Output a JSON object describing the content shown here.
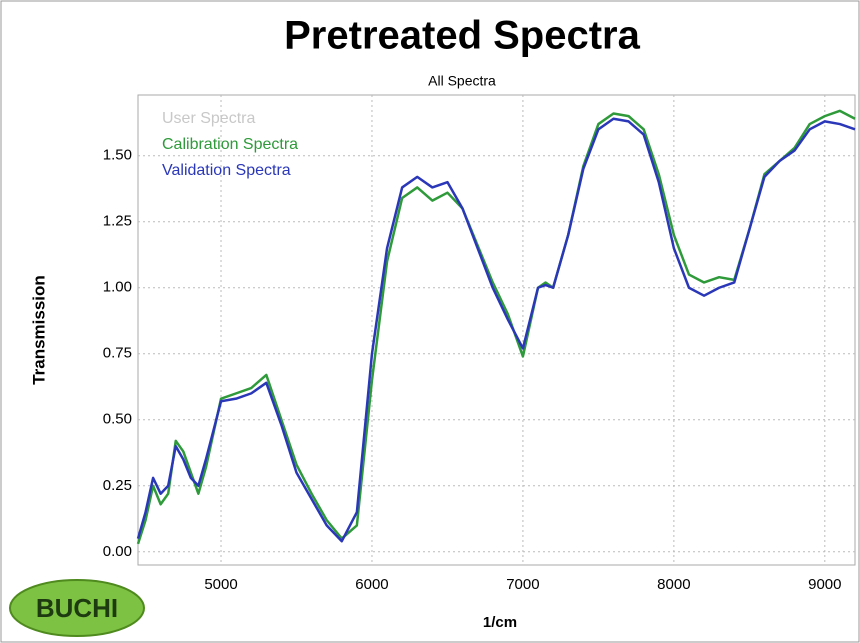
{
  "chart_data": {
    "type": "line",
    "title": "Pretreated Spectra",
    "subtitle": "All Spectra",
    "x_label": "1/cm",
    "y_label": "Transmission",
    "logo": "BUCHI",
    "x": [
      4450,
      4500,
      4550,
      4600,
      4650,
      4700,
      4750,
      4800,
      4850,
      4900,
      5000,
      5100,
      5200,
      5300,
      5400,
      5500,
      5600,
      5700,
      5800,
      5900,
      6000,
      6100,
      6200,
      6300,
      6400,
      6500,
      6600,
      6700,
      6800,
      6900,
      7000,
      7100,
      7150,
      7200,
      7300,
      7400,
      7500,
      7600,
      7700,
      7800,
      7900,
      8000,
      8100,
      8200,
      8300,
      8400,
      8500,
      8600,
      8700,
      8800,
      8900,
      9000,
      9100,
      9200
    ],
    "series": [
      {
        "name": "User Spectra",
        "color": "#c8c8c8",
        "values": [
          null,
          null,
          null,
          null,
          null,
          null,
          null,
          null,
          null,
          null,
          null,
          null,
          null,
          null,
          null,
          null,
          null,
          null,
          null,
          null,
          null,
          null,
          null,
          null,
          null,
          null,
          null,
          null,
          null,
          null,
          null,
          null,
          null,
          null,
          null,
          null,
          null,
          null,
          null,
          null,
          null,
          null,
          null,
          null,
          null,
          null,
          null,
          null,
          null,
          null,
          null,
          null,
          null,
          null
        ]
      },
      {
        "name": "Calibration Spectra",
        "color": "#2e9a3a",
        "values": [
          0.03,
          0.12,
          0.25,
          0.18,
          0.22,
          0.42,
          0.38,
          0.3,
          0.22,
          0.32,
          0.58,
          0.6,
          0.62,
          0.67,
          0.5,
          0.33,
          0.22,
          0.12,
          0.05,
          0.1,
          0.65,
          1.1,
          1.34,
          1.38,
          1.33,
          1.36,
          1.3,
          1.16,
          1.02,
          0.9,
          0.74,
          1.0,
          1.02,
          1.0,
          1.2,
          1.46,
          1.62,
          1.66,
          1.65,
          1.6,
          1.43,
          1.2,
          1.05,
          1.02,
          1.04,
          1.03,
          1.22,
          1.43,
          1.48,
          1.53,
          1.62,
          1.65,
          1.67,
          1.64
        ]
      },
      {
        "name": "Validation Spectra",
        "color": "#2a37b8",
        "values": [
          0.05,
          0.15,
          0.28,
          0.22,
          0.25,
          0.4,
          0.35,
          0.28,
          0.25,
          0.35,
          0.57,
          0.58,
          0.6,
          0.64,
          0.48,
          0.3,
          0.2,
          0.1,
          0.04,
          0.15,
          0.75,
          1.15,
          1.38,
          1.42,
          1.38,
          1.4,
          1.3,
          1.15,
          1.0,
          0.88,
          0.77,
          1.0,
          1.01,
          1.0,
          1.2,
          1.45,
          1.6,
          1.64,
          1.63,
          1.58,
          1.4,
          1.15,
          1.0,
          0.97,
          1.0,
          1.02,
          1.22,
          1.42,
          1.48,
          1.52,
          1.6,
          1.63,
          1.62,
          1.6
        ]
      }
    ],
    "xlim": [
      4450,
      9200
    ],
    "xticks": [
      5000,
      6000,
      7000,
      8000,
      9000
    ],
    "ylim": [
      -0.05,
      1.73
    ],
    "yticks": [
      {
        "value": 0,
        "label": "0.00"
      },
      {
        "value": 0.25,
        "label": "0.25"
      },
      {
        "value": 0.5,
        "label": "0.50"
      },
      {
        "value": 0.75,
        "label": "0.75"
      },
      {
        "value": 1,
        "label": "1.00"
      },
      {
        "value": 1.25,
        "label": "1.25"
      },
      {
        "value": 1.5,
        "label": "1.50"
      }
    ],
    "grid": true,
    "legend": "upper-left"
  }
}
